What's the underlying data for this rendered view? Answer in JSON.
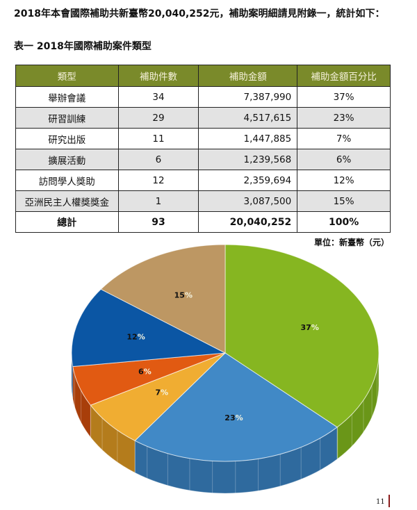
{
  "intro": "2018年本會國際補助共新臺幣20,040,252元，補助案明細請見附錄一，統計如下：",
  "caption": "表一 2018年國際補助案件類型",
  "table": {
    "headers": [
      "類型",
      "補助件數",
      "補助金額",
      "補助金額百分比"
    ],
    "rows": [
      [
        "舉辦會議",
        "34",
        "7,387,990",
        "37%"
      ],
      [
        "研習訓練",
        "29",
        "4,517,615",
        "23%"
      ],
      [
        "研究出版",
        "11",
        "1,447,885",
        "7%"
      ],
      [
        "擴展活動",
        "6",
        "1,239,568",
        "6%"
      ],
      [
        "訪問學人獎助",
        "12",
        "2,359,694",
        "12%"
      ],
      [
        "亞洲民主人權獎獎金",
        "1",
        "3,087,500",
        "15%"
      ]
    ],
    "total": [
      "總計",
      "93",
      "20,040,252",
      "100%"
    ]
  },
  "unit": "單位：新臺幣（元）",
  "page_number": "11",
  "chart_data": {
    "type": "pie",
    "style": "3d",
    "slices": [
      {
        "name": "舉辦會議",
        "value": 37,
        "label": "37",
        "color": "#86b621",
        "side": "#6a9618"
      },
      {
        "name": "研習訓練",
        "value": 23,
        "label": "23",
        "color": "#4189c6",
        "side": "#2f6a9e"
      },
      {
        "name": "研究出版",
        "value": 7,
        "label": "7",
        "color": "#f0ad32",
        "side": "#b47c1c"
      },
      {
        "name": "擴展活動",
        "value": 6,
        "label": "6",
        "color": "#e15a12",
        "side": "#a83e0a"
      },
      {
        "name": "訪問學人獎助",
        "value": 12,
        "label": "12",
        "color": "#0b56a4",
        "side": "#083f7a"
      },
      {
        "name": "亞洲民主人權獎獎金",
        "value": 15,
        "label": "15",
        "color": "#bd9763",
        "side": "#8e6f45"
      }
    ],
    "percent_sign": "%"
  }
}
